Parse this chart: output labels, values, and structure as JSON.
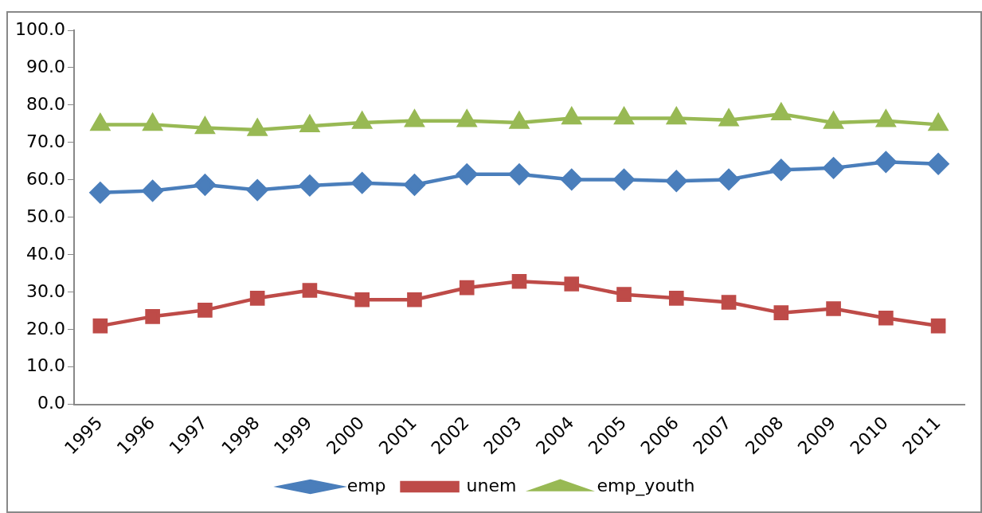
{
  "chart_data": {
    "type": "line",
    "categories": [
      "1995",
      "1996",
      "1997",
      "1998",
      "1999",
      "2000",
      "2001",
      "2002",
      "2003",
      "2004",
      "2005",
      "2006",
      "2007",
      "2008",
      "2009",
      "2010",
      "2011"
    ],
    "series": [
      {
        "name": "emp",
        "color": "#4a7ebb",
        "marker": "diamond",
        "values": [
          56.6,
          57.1,
          58.7,
          57.3,
          58.5,
          59.2,
          58.7,
          61.5,
          61.5,
          60.1,
          60.1,
          59.7,
          60.1,
          62.7,
          63.2,
          64.8,
          64.3
        ]
      },
      {
        "name": "unem",
        "color": "#be4b48",
        "marker": "square",
        "values": [
          21.0,
          23.5,
          25.2,
          28.4,
          30.5,
          28.0,
          28.0,
          31.2,
          32.9,
          32.2,
          29.4,
          28.4,
          27.3,
          24.5,
          25.6,
          23.1,
          21.0
        ]
      },
      {
        "name": "emp_youth",
        "color": "#98b954",
        "marker": "triangle",
        "values": [
          74.8,
          74.8,
          73.9,
          73.4,
          74.4,
          75.3,
          75.8,
          75.8,
          75.3,
          76.5,
          76.5,
          76.5,
          76.0,
          77.6,
          75.3,
          75.8,
          74.8
        ]
      }
    ],
    "ylim": [
      0,
      100
    ],
    "yticks": [
      {
        "value": 0,
        "label": "0.0"
      },
      {
        "value": 10,
        "label": "10.0"
      },
      {
        "value": 20,
        "label": "20.0"
      },
      {
        "value": 30,
        "label": "30.0"
      },
      {
        "value": 40,
        "label": "40.0"
      },
      {
        "value": 50,
        "label": "50.0"
      },
      {
        "value": 60,
        "label": "60.0"
      },
      {
        "value": 70,
        "label": "70.0"
      },
      {
        "value": 80,
        "label": "80.0"
      },
      {
        "value": 90,
        "label": "90.0"
      },
      {
        "value": 100,
        "label": "100.0"
      }
    ],
    "grid": false,
    "legend": "bottom"
  }
}
